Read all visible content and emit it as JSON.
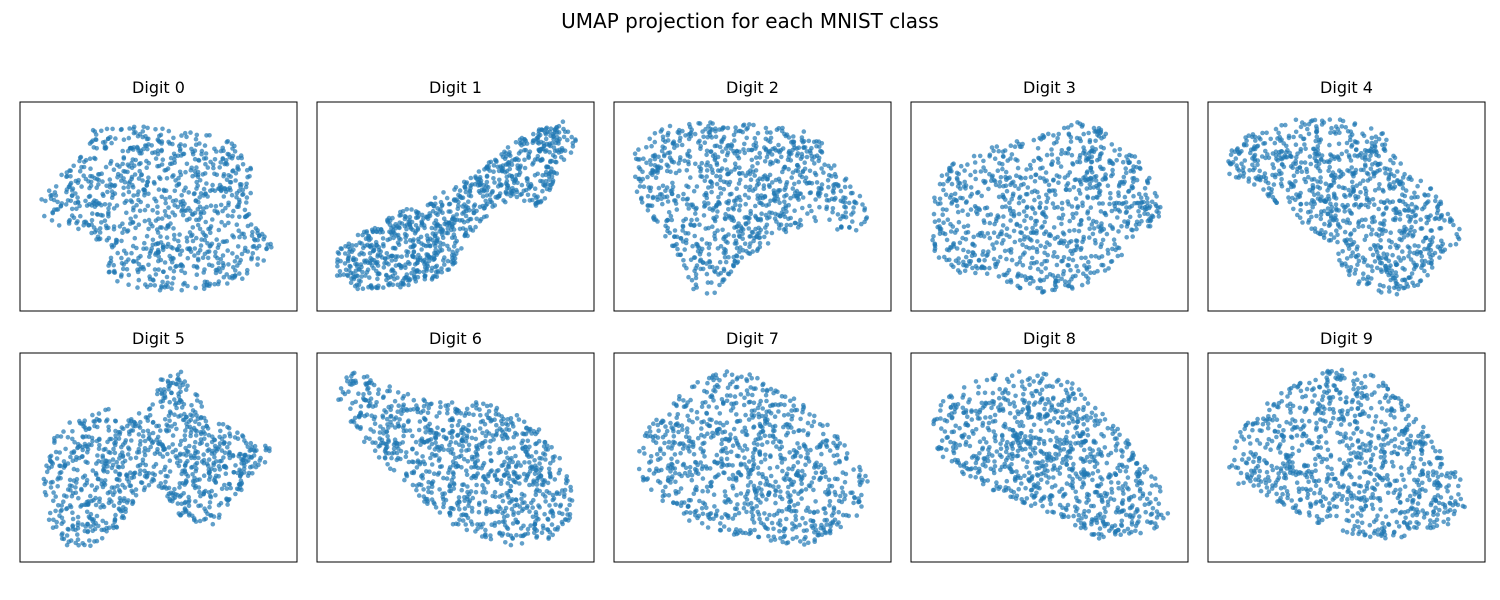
{
  "figure": {
    "title": "UMAP projection for each MNIST class",
    "point_color": "#1f77b4",
    "point_alpha": 0.7
  },
  "chart_data": [
    {
      "type": "scatter",
      "title": "Digit 0",
      "shape": [
        [
          0.05,
          0.45
        ],
        [
          0.12,
          0.35
        ],
        [
          0.2,
          0.25
        ],
        [
          0.24,
          0.1
        ],
        [
          0.45,
          0.08
        ],
        [
          0.6,
          0.12
        ],
        [
          0.78,
          0.15
        ],
        [
          0.86,
          0.32
        ],
        [
          0.85,
          0.55
        ],
        [
          0.9,
          0.62
        ],
        [
          0.95,
          0.72
        ],
        [
          0.86,
          0.85
        ],
        [
          0.7,
          0.92
        ],
        [
          0.55,
          0.94
        ],
        [
          0.4,
          0.92
        ],
        [
          0.3,
          0.85
        ],
        [
          0.3,
          0.72
        ],
        [
          0.22,
          0.62
        ],
        [
          0.1,
          0.6
        ],
        [
          0.06,
          0.55
        ]
      ]
    },
    {
      "type": "scatter",
      "title": "Digit 1",
      "shape": [
        [
          0.05,
          0.72
        ],
        [
          0.15,
          0.62
        ],
        [
          0.3,
          0.52
        ],
        [
          0.42,
          0.45
        ],
        [
          0.52,
          0.38
        ],
        [
          0.62,
          0.28
        ],
        [
          0.72,
          0.18
        ],
        [
          0.82,
          0.1
        ],
        [
          0.92,
          0.06
        ],
        [
          0.97,
          0.18
        ],
        [
          0.9,
          0.3
        ],
        [
          0.85,
          0.45
        ],
        [
          0.8,
          0.52
        ],
        [
          0.72,
          0.45
        ],
        [
          0.62,
          0.55
        ],
        [
          0.55,
          0.65
        ],
        [
          0.5,
          0.8
        ],
        [
          0.4,
          0.88
        ],
        [
          0.25,
          0.92
        ],
        [
          0.12,
          0.92
        ],
        [
          0.04,
          0.85
        ]
      ]
    },
    {
      "type": "scatter",
      "title": "Digit 2",
      "shape": [
        [
          0.05,
          0.2
        ],
        [
          0.15,
          0.1
        ],
        [
          0.3,
          0.06
        ],
        [
          0.5,
          0.08
        ],
        [
          0.65,
          0.1
        ],
        [
          0.75,
          0.14
        ],
        [
          0.82,
          0.3
        ],
        [
          0.92,
          0.45
        ],
        [
          0.96,
          0.6
        ],
        [
          0.88,
          0.65
        ],
        [
          0.75,
          0.58
        ],
        [
          0.65,
          0.62
        ],
        [
          0.55,
          0.7
        ],
        [
          0.45,
          0.78
        ],
        [
          0.4,
          0.88
        ],
        [
          0.35,
          0.95
        ],
        [
          0.28,
          0.95
        ],
        [
          0.25,
          0.85
        ],
        [
          0.2,
          0.72
        ],
        [
          0.12,
          0.6
        ],
        [
          0.05,
          0.45
        ]
      ]
    },
    {
      "type": "scatter",
      "title": "Digit 3",
      "shape": [
        [
          0.08,
          0.35
        ],
        [
          0.15,
          0.25
        ],
        [
          0.3,
          0.18
        ],
        [
          0.45,
          0.15
        ],
        [
          0.55,
          0.1
        ],
        [
          0.65,
          0.05
        ],
        [
          0.78,
          0.18
        ],
        [
          0.88,
          0.32
        ],
        [
          0.94,
          0.55
        ],
        [
          0.85,
          0.65
        ],
        [
          0.78,
          0.75
        ],
        [
          0.7,
          0.85
        ],
        [
          0.6,
          0.92
        ],
        [
          0.5,
          0.95
        ],
        [
          0.4,
          0.92
        ],
        [
          0.25,
          0.85
        ],
        [
          0.15,
          0.85
        ],
        [
          0.05,
          0.75
        ],
        [
          0.05,
          0.55
        ],
        [
          0.05,
          0.42
        ]
      ]
    },
    {
      "type": "scatter",
      "title": "Digit 4",
      "shape": [
        [
          0.04,
          0.25
        ],
        [
          0.1,
          0.15
        ],
        [
          0.22,
          0.1
        ],
        [
          0.3,
          0.06
        ],
        [
          0.45,
          0.05
        ],
        [
          0.55,
          0.08
        ],
        [
          0.65,
          0.12
        ],
        [
          0.72,
          0.3
        ],
        [
          0.82,
          0.4
        ],
        [
          0.9,
          0.5
        ],
        [
          0.95,
          0.65
        ],
        [
          0.88,
          0.75
        ],
        [
          0.8,
          0.88
        ],
        [
          0.7,
          0.95
        ],
        [
          0.55,
          0.92
        ],
        [
          0.48,
          0.8
        ],
        [
          0.45,
          0.7
        ],
        [
          0.35,
          0.6
        ],
        [
          0.25,
          0.5
        ],
        [
          0.12,
          0.4
        ],
        [
          0.05,
          0.35
        ]
      ]
    },
    {
      "type": "scatter",
      "title": "Digit 5",
      "shape": [
        [
          0.05,
          0.65
        ],
        [
          0.08,
          0.45
        ],
        [
          0.12,
          0.35
        ],
        [
          0.2,
          0.28
        ],
        [
          0.32,
          0.25
        ],
        [
          0.4,
          0.3
        ],
        [
          0.48,
          0.22
        ],
        [
          0.5,
          0.1
        ],
        [
          0.6,
          0.06
        ],
        [
          0.65,
          0.15
        ],
        [
          0.68,
          0.28
        ],
        [
          0.78,
          0.35
        ],
        [
          0.88,
          0.4
        ],
        [
          0.95,
          0.48
        ],
        [
          0.85,
          0.6
        ],
        [
          0.78,
          0.75
        ],
        [
          0.7,
          0.85
        ],
        [
          0.6,
          0.82
        ],
        [
          0.55,
          0.75
        ],
        [
          0.48,
          0.62
        ],
        [
          0.42,
          0.7
        ],
        [
          0.35,
          0.85
        ],
        [
          0.25,
          0.95
        ],
        [
          0.15,
          0.95
        ],
        [
          0.08,
          0.85
        ]
      ]
    },
    {
      "type": "scatter",
      "title": "Digit 6",
      "shape": [
        [
          0.05,
          0.1
        ],
        [
          0.1,
          0.06
        ],
        [
          0.2,
          0.1
        ],
        [
          0.32,
          0.18
        ],
        [
          0.45,
          0.22
        ],
        [
          0.6,
          0.22
        ],
        [
          0.72,
          0.25
        ],
        [
          0.82,
          0.35
        ],
        [
          0.9,
          0.5
        ],
        [
          0.95,
          0.65
        ],
        [
          0.95,
          0.8
        ],
        [
          0.85,
          0.92
        ],
        [
          0.7,
          0.95
        ],
        [
          0.6,
          0.9
        ],
        [
          0.5,
          0.85
        ],
        [
          0.4,
          0.75
        ],
        [
          0.3,
          0.62
        ],
        [
          0.2,
          0.5
        ],
        [
          0.1,
          0.35
        ],
        [
          0.05,
          0.22
        ]
      ]
    },
    {
      "type": "scatter",
      "title": "Digit 7",
      "shape": [
        [
          0.05,
          0.5
        ],
        [
          0.1,
          0.35
        ],
        [
          0.2,
          0.2
        ],
        [
          0.28,
          0.12
        ],
        [
          0.38,
          0.06
        ],
        [
          0.5,
          0.08
        ],
        [
          0.6,
          0.15
        ],
        [
          0.72,
          0.25
        ],
        [
          0.8,
          0.35
        ],
        [
          0.88,
          0.48
        ],
        [
          0.95,
          0.6
        ],
        [
          0.92,
          0.78
        ],
        [
          0.82,
          0.88
        ],
        [
          0.7,
          0.95
        ],
        [
          0.55,
          0.92
        ],
        [
          0.45,
          0.9
        ],
        [
          0.3,
          0.85
        ],
        [
          0.22,
          0.8
        ],
        [
          0.15,
          0.72
        ],
        [
          0.08,
          0.62
        ]
      ]
    },
    {
      "type": "scatter",
      "title": "Digit 8",
      "shape": [
        [
          0.05,
          0.3
        ],
        [
          0.1,
          0.2
        ],
        [
          0.2,
          0.12
        ],
        [
          0.28,
          0.08
        ],
        [
          0.4,
          0.06
        ],
        [
          0.52,
          0.08
        ],
        [
          0.62,
          0.14
        ],
        [
          0.72,
          0.3
        ],
        [
          0.78,
          0.38
        ],
        [
          0.86,
          0.5
        ],
        [
          0.92,
          0.62
        ],
        [
          0.96,
          0.8
        ],
        [
          0.9,
          0.88
        ],
        [
          0.8,
          0.9
        ],
        [
          0.7,
          0.92
        ],
        [
          0.6,
          0.85
        ],
        [
          0.5,
          0.78
        ],
        [
          0.38,
          0.72
        ],
        [
          0.25,
          0.65
        ],
        [
          0.12,
          0.55
        ],
        [
          0.06,
          0.45
        ]
      ]
    },
    {
      "type": "scatter",
      "title": "Digit 9",
      "shape": [
        [
          0.05,
          0.5
        ],
        [
          0.1,
          0.35
        ],
        [
          0.2,
          0.22
        ],
        [
          0.3,
          0.12
        ],
        [
          0.4,
          0.06
        ],
        [
          0.5,
          0.05
        ],
        [
          0.6,
          0.08
        ],
        [
          0.72,
          0.2
        ],
        [
          0.8,
          0.35
        ],
        [
          0.88,
          0.5
        ],
        [
          0.94,
          0.62
        ],
        [
          0.96,
          0.75
        ],
        [
          0.88,
          0.85
        ],
        [
          0.75,
          0.9
        ],
        [
          0.62,
          0.92
        ],
        [
          0.5,
          0.88
        ],
        [
          0.4,
          0.85
        ],
        [
          0.3,
          0.78
        ],
        [
          0.2,
          0.7
        ],
        [
          0.1,
          0.65
        ],
        [
          0.05,
          0.6
        ]
      ]
    }
  ]
}
